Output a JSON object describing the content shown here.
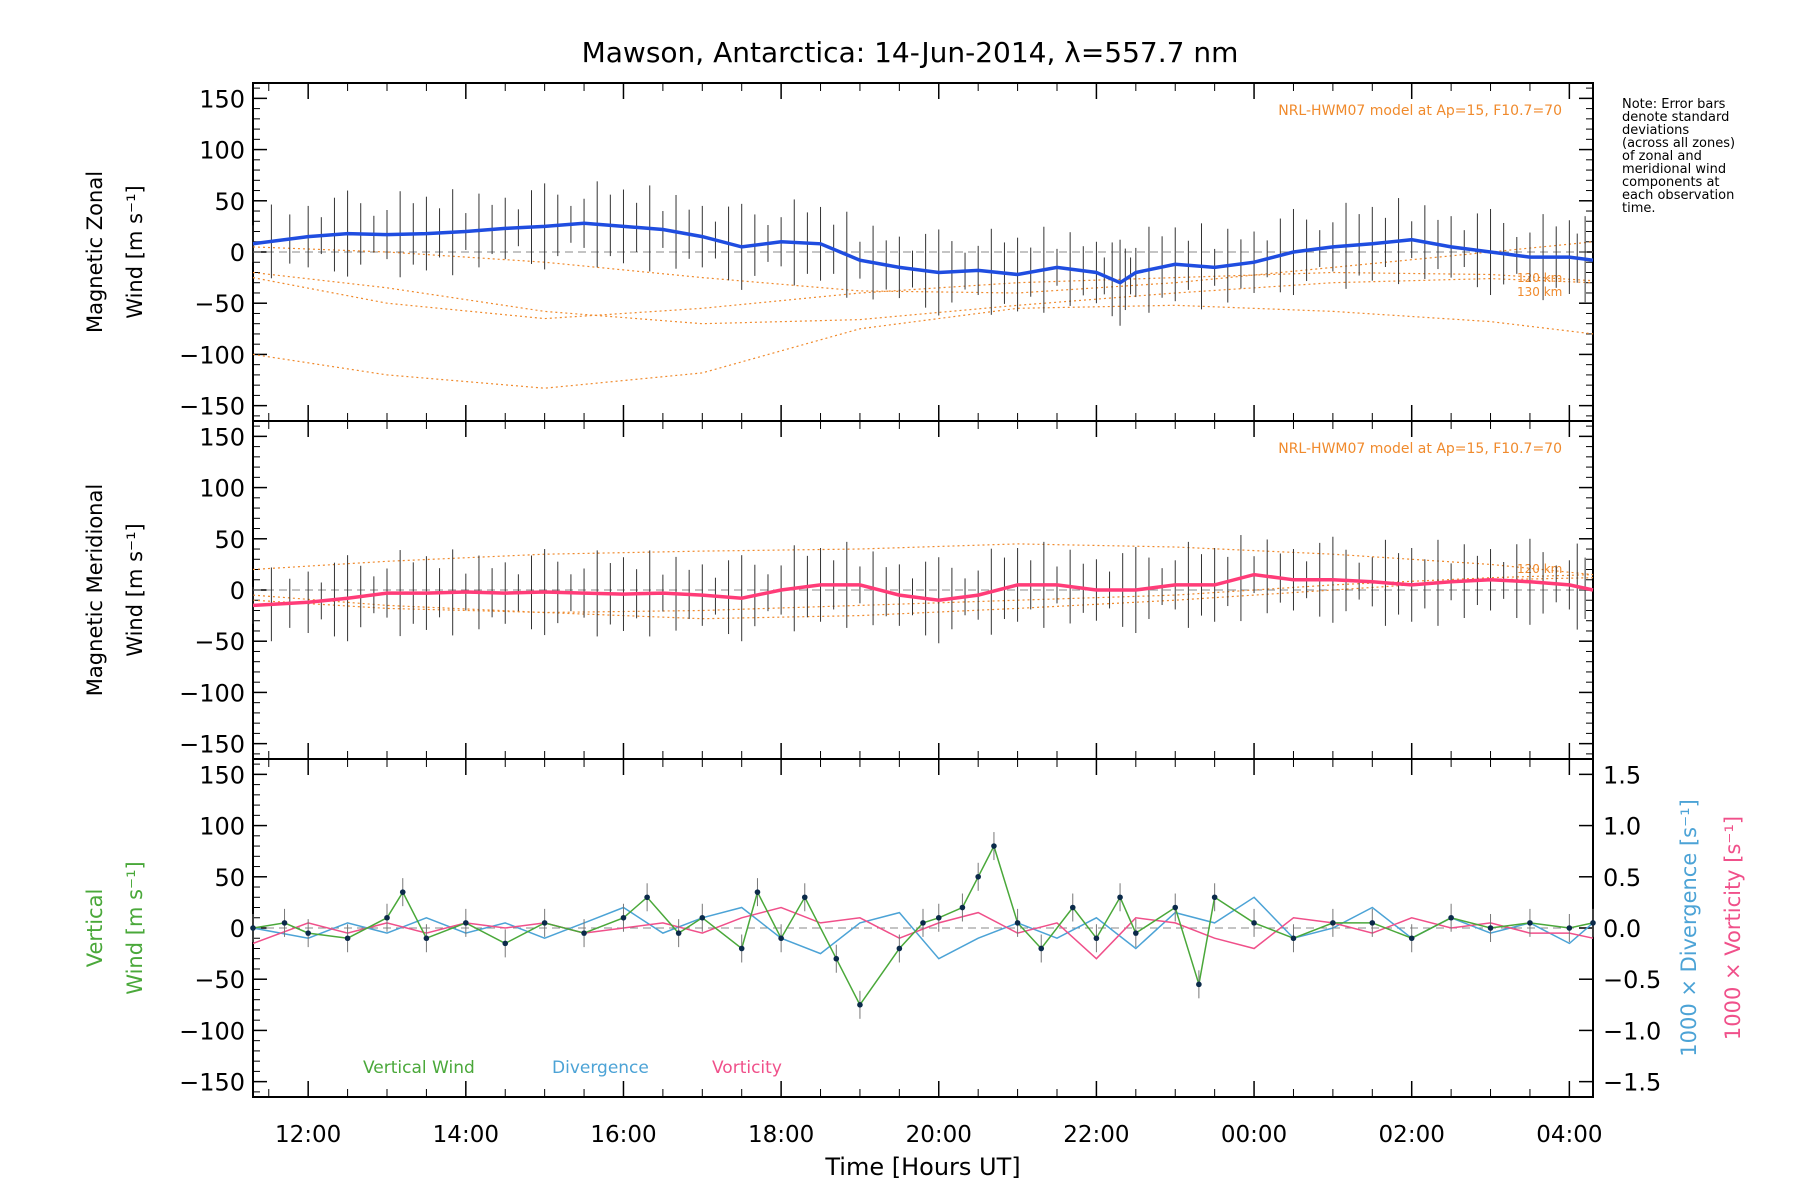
{
  "chart_data": {
    "type": "line",
    "title": "Mawson, Antarctica: 14-Jun-2014, λ=557.7 nm",
    "xlabel": "Time [Hours UT]",
    "x_ticks": [
      "12:00",
      "14:00",
      "16:00",
      "18:00",
      "20:00",
      "22:00",
      "00:00",
      "02:00",
      "04:00"
    ],
    "x_range_hours": [
      11.3,
      28.3
    ],
    "y_ticks": [
      150,
      100,
      50,
      0,
      -50,
      -100,
      -150
    ],
    "ylim": [
      -165,
      165
    ],
    "note": [
      "Note: Error bars",
      "denote standard",
      "deviations",
      "(across all zones)",
      "of zonal and",
      "meridional wind",
      "components at",
      "each observation",
      "time."
    ],
    "panels": [
      {
        "ylabel_line1": "Magnetic Zonal",
        "ylabel_line2": "Wind [m s⁻¹]",
        "model_label": "NRL-HWM07 model at Ap=15, F10.7=70",
        "model_height_labels": [
          "120 km",
          "130 km"
        ],
        "series": [
          {
            "name": "",
            "color": "#1f4de0",
            "x": [
              11.3,
              12.0,
              12.5,
              13.0,
              13.5,
              14.0,
              14.5,
              15.0,
              15.5,
              16.0,
              16.5,
              17.0,
              17.5,
              18.0,
              18.5,
              19.0,
              19.5,
              20.0,
              20.5,
              21.0,
              21.5,
              22.0,
              22.3,
              22.5,
              23.0,
              23.5,
              24.0,
              24.5,
              25.0,
              25.5,
              26.0,
              26.5,
              27.0,
              27.5,
              28.0,
              28.3
            ],
            "y": [
              8,
              15,
              18,
              17,
              18,
              20,
              23,
              25,
              28,
              25,
              22,
              15,
              5,
              10,
              8,
              -8,
              -15,
              -20,
              -18,
              -22,
              -15,
              -20,
              -30,
              -20,
              -12,
              -15,
              -10,
              0,
              5,
              8,
              12,
              5,
              0,
              -5,
              -5,
              -8
            ]
          }
        ],
        "model_curves": [
          {
            "x": [
              11.3,
              13,
              15,
              17,
              19,
              21,
              23,
              25,
              27,
              28.3
            ],
            "y": [
              -100,
              -120,
              -133,
              -118,
              -75,
              -55,
              -52,
              -58,
              -68,
              -80
            ]
          },
          {
            "x": [
              11.3,
              13,
              15,
              17,
              19,
              21,
              23,
              25,
              27,
              28.3
            ],
            "y": [
              -20,
              -35,
              -58,
              -70,
              -66,
              -52,
              -40,
              -30,
              -26,
              -30
            ]
          },
          {
            "x": [
              11.3,
              13,
              15,
              17,
              19,
              21,
              23,
              25,
              27,
              28.3
            ],
            "y": [
              -25,
              -50,
              -65,
              -55,
              -40,
              -30,
              -25,
              -20,
              -22,
              -28
            ]
          },
          {
            "x": [
              11.3,
              13,
              15,
              17,
              19,
              21,
              23,
              25,
              27,
              28.3
            ],
            "y": [
              5,
              0,
              -10,
              -25,
              -38,
              -40,
              -30,
              -15,
              0,
              10
            ]
          }
        ]
      },
      {
        "ylabel_line1": "Magnetic Meridional",
        "ylabel_line2": "Wind [m s⁻¹]",
        "model_label": "NRL-HWM07 model at Ap=15, F10.7=70",
        "model_height_labels": [
          "120 km"
        ],
        "series": [
          {
            "name": "",
            "color": "#ff3c78",
            "x": [
              11.3,
              12.0,
              12.5,
              13.0,
              13.5,
              14.0,
              14.5,
              15.0,
              15.5,
              16.0,
              16.5,
              17.0,
              17.5,
              18.0,
              18.5,
              19.0,
              19.5,
              20.0,
              20.5,
              21.0,
              21.5,
              22.0,
              22.5,
              23.0,
              23.5,
              24.0,
              24.5,
              25.0,
              25.5,
              26.0,
              26.5,
              27.0,
              27.5,
              28.0,
              28.3
            ],
            "y": [
              -15,
              -12,
              -8,
              -3,
              -3,
              -2,
              -3,
              -2,
              -3,
              -4,
              -3,
              -5,
              -8,
              0,
              5,
              5,
              -5,
              -10,
              -5,
              5,
              5,
              0,
              0,
              5,
              5,
              15,
              10,
              10,
              8,
              5,
              8,
              10,
              8,
              5,
              0
            ]
          }
        ],
        "model_curves": [
          {
            "x": [
              11.3,
              13,
              15,
              17,
              19,
              21,
              23,
              25,
              27,
              28.3
            ],
            "y": [
              20,
              28,
              35,
              38,
              40,
              45,
              42,
              35,
              25,
              15
            ]
          },
          {
            "x": [
              11.3,
              13,
              15,
              17,
              19,
              21,
              23,
              25,
              27,
              28.3
            ],
            "y": [
              -5,
              -15,
              -22,
              -28,
              -25,
              -18,
              -10,
              0,
              10,
              12
            ]
          },
          {
            "x": [
              11.3,
              13,
              15,
              17,
              19,
              21,
              23,
              25,
              27,
              28.3
            ],
            "y": [
              -10,
              -18,
              -22,
              -20,
              -15,
              -10,
              -5,
              5,
              12,
              15
            ]
          }
        ]
      },
      {
        "ylabel_line1": "Vertical",
        "ylabel_line2": "Wind [m s⁻¹]",
        "y2_ticks": [
          "1.5",
          "1.0",
          "0.5",
          "0.0",
          "−0.5",
          "−1.0",
          "−1.5"
        ],
        "y2_label_divergence": "1000 × Divergence [s⁻¹]",
        "y2_label_vorticity": "1000 × Vorticity [s⁻¹]",
        "legend": [
          "Vertical Wind",
          "Divergence",
          "Vorticity"
        ],
        "series": [
          {
            "name": "Vertical Wind",
            "color": "#4aa83a",
            "x": [
              11.3,
              11.7,
              12.0,
              12.5,
              13.0,
              13.2,
              13.5,
              14.0,
              14.5,
              15.0,
              15.5,
              16.0,
              16.3,
              16.7,
              17.0,
              17.5,
              17.7,
              18.0,
              18.3,
              18.7,
              19.0,
              19.5,
              19.8,
              20.0,
              20.3,
              20.5,
              20.7,
              21.0,
              21.3,
              21.7,
              22.0,
              22.3,
              22.5,
              23.0,
              23.3,
              23.5,
              24.0,
              24.5,
              25.0,
              25.5,
              26.0,
              26.5,
              27.0,
              27.5,
              28.0,
              28.3
            ],
            "y": [
              0,
              5,
              -5,
              -10,
              10,
              35,
              -10,
              5,
              -15,
              5,
              -5,
              10,
              30,
              -5,
              10,
              -20,
              35,
              -10,
              30,
              -30,
              -75,
              -20,
              5,
              10,
              20,
              50,
              80,
              5,
              -20,
              20,
              -10,
              30,
              -5,
              20,
              -55,
              30,
              5,
              -10,
              5,
              5,
              -10,
              10,
              0,
              5,
              0,
              5
            ]
          },
          {
            "name": "Divergence",
            "color": "#4ca3d6",
            "x": [
              11.3,
              12.0,
              12.5,
              13.0,
              13.5,
              14.0,
              14.5,
              15.0,
              15.5,
              16.0,
              16.5,
              17.0,
              17.5,
              18.0,
              18.5,
              19.0,
              19.5,
              20.0,
              20.5,
              21.0,
              21.5,
              22.0,
              22.5,
              23.0,
              23.5,
              24.0,
              24.5,
              25.0,
              25.5,
              26.0,
              26.5,
              27.0,
              27.5,
              28.0,
              28.3
            ],
            "y": [
              0.0,
              -0.1,
              0.05,
              -0.05,
              0.1,
              -0.05,
              0.05,
              -0.1,
              0.05,
              0.2,
              -0.05,
              0.1,
              0.2,
              -0.1,
              -0.25,
              0.05,
              0.15,
              -0.3,
              -0.1,
              0.05,
              -0.1,
              0.1,
              -0.2,
              0.15,
              0.05,
              0.3,
              -0.1,
              0.0,
              0.2,
              -0.1,
              0.1,
              -0.05,
              0.05,
              -0.15,
              0.05
            ]
          },
          {
            "name": "Vorticity",
            "color": "#f0508a",
            "x": [
              11.3,
              12.0,
              12.5,
              13.0,
              13.5,
              14.0,
              14.5,
              15.0,
              15.5,
              16.0,
              16.5,
              17.0,
              17.5,
              18.0,
              18.5,
              19.0,
              19.5,
              20.0,
              20.5,
              21.0,
              21.5,
              22.0,
              22.5,
              23.0,
              23.5,
              24.0,
              24.5,
              25.0,
              25.5,
              26.0,
              26.5,
              27.0,
              27.5,
              28.0,
              28.3
            ],
            "y": [
              -0.15,
              0.05,
              -0.05,
              0.05,
              -0.05,
              0.05,
              0.0,
              0.05,
              -0.05,
              0.0,
              0.05,
              -0.05,
              0.1,
              0.2,
              0.05,
              0.1,
              -0.1,
              0.05,
              0.15,
              -0.05,
              0.05,
              -0.3,
              0.1,
              0.05,
              -0.1,
              -0.2,
              0.1,
              0.05,
              -0.05,
              0.1,
              0.0,
              0.05,
              -0.05,
              -0.05,
              -0.1
            ]
          }
        ]
      }
    ],
    "grid": false
  }
}
